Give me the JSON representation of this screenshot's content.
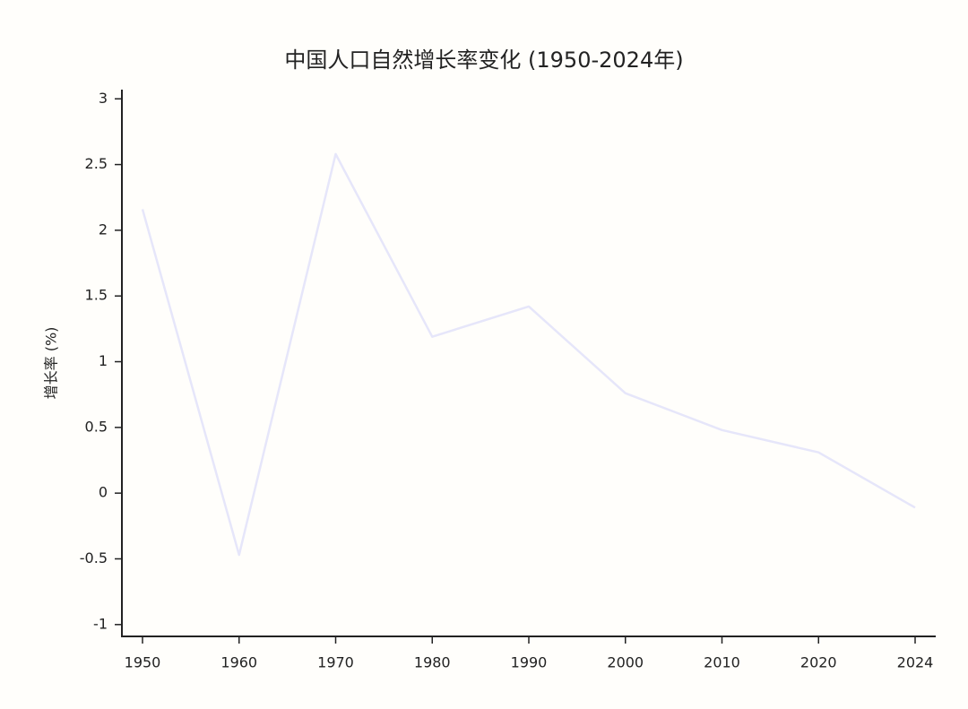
{
  "chart_data": {
    "type": "line",
    "title": "中国人口自然增长率变化 (1950-2024年)",
    "y_label": "增长率 (%)",
    "categories": [
      "1950",
      "1960",
      "1970",
      "1980",
      "1990",
      "2000",
      "2010",
      "2020",
      "2024"
    ],
    "series": [
      {
        "name": "自然增长率",
        "color": "#e6e6fa",
        "values": [
          2.16,
          -0.47,
          2.58,
          1.19,
          1.42,
          0.76,
          0.48,
          0.31,
          -0.11
        ]
      }
    ],
    "ylim": [
      -1.09,
      3.07
    ],
    "yticks": [
      -1,
      -0.5,
      0,
      0.5,
      1,
      1.5,
      2,
      2.5,
      3
    ],
    "grid": false
  }
}
